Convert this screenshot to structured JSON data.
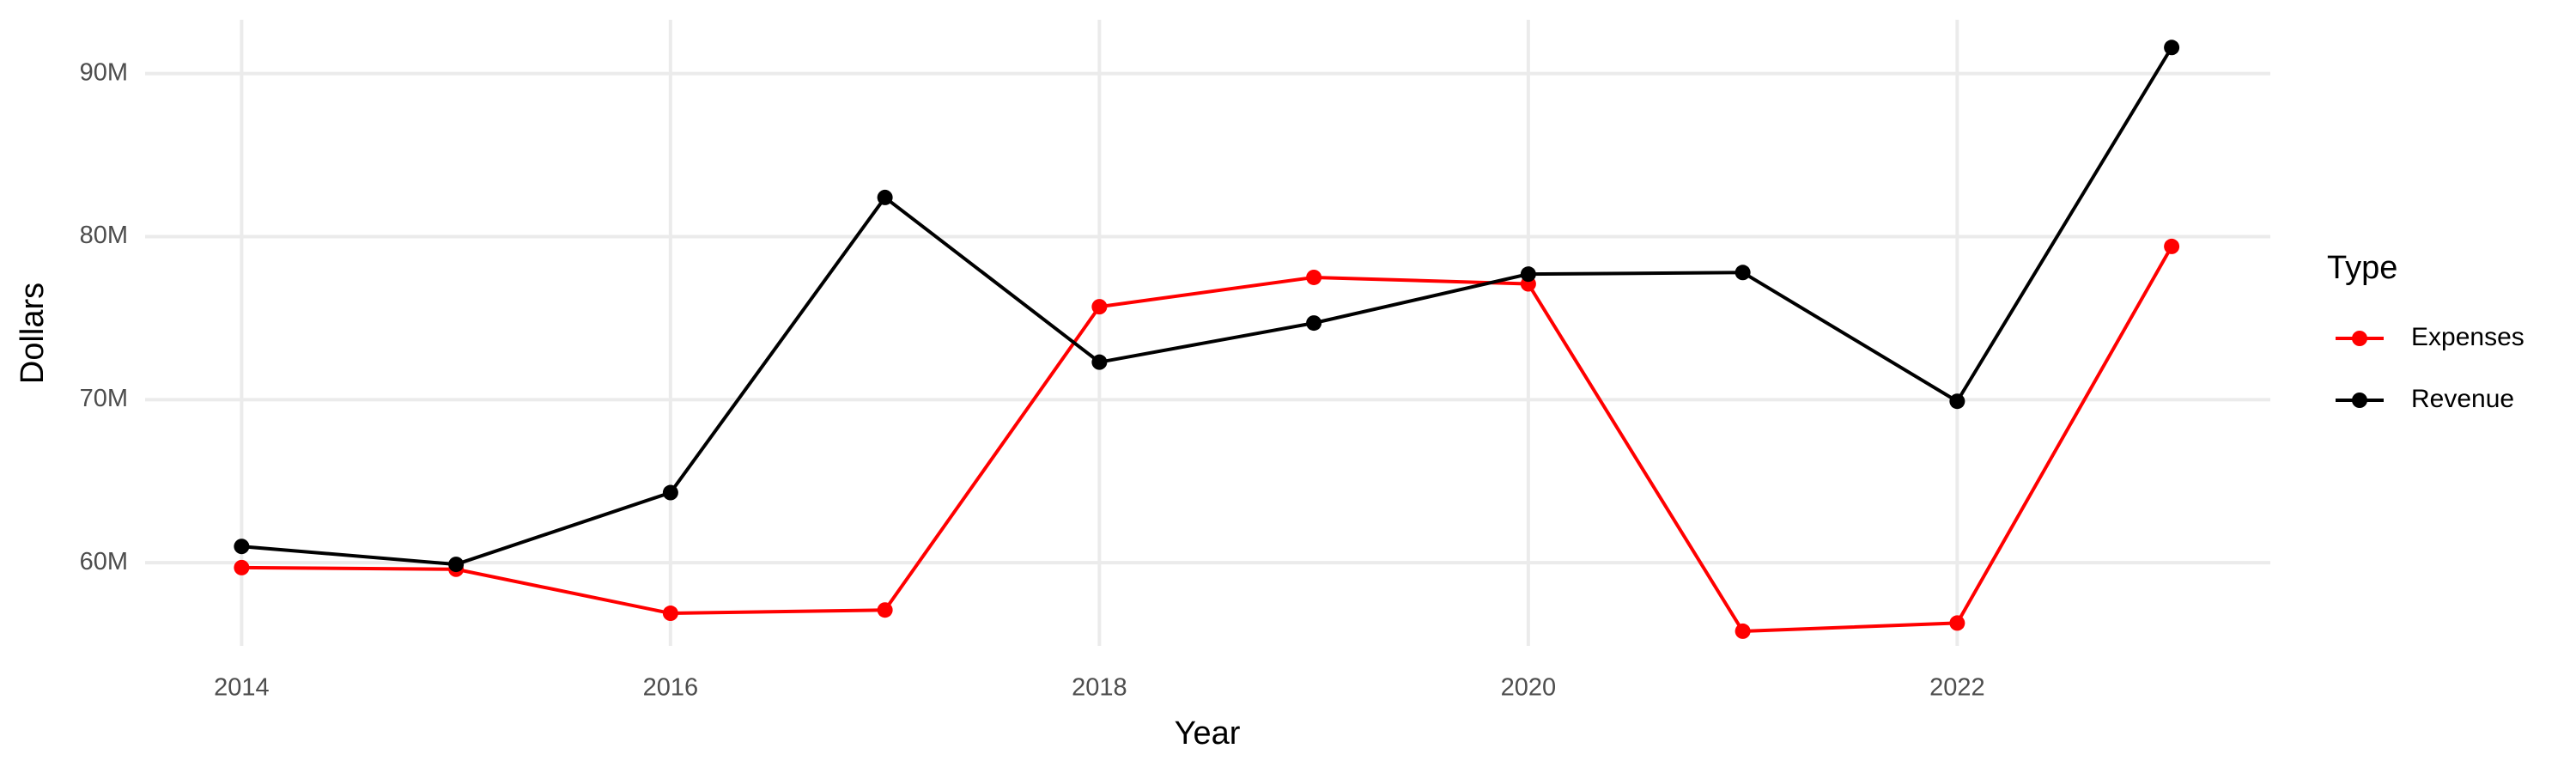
{
  "chart_data": {
    "type": "line",
    "x_label": "Year",
    "y_label": "Dollars",
    "legend_title": "Type",
    "legend_position": "right",
    "grid": true,
    "x": [
      2014,
      2015,
      2016,
      2017,
      2018,
      2019,
      2020,
      2021,
      2022,
      2023
    ],
    "xlim": [
      2013.55,
      2023.46
    ],
    "xticks": [
      2014,
      2016,
      2018,
      2020,
      2022
    ],
    "ylim": [
      54900000,
      93300000
    ],
    "yticks": [
      {
        "value": 60000000,
        "label": "60M"
      },
      {
        "value": 70000000,
        "label": "70M"
      },
      {
        "value": 80000000,
        "label": "80M"
      },
      {
        "value": 90000000,
        "label": "90M"
      }
    ],
    "series": [
      {
        "name": "Expenses",
        "color": "#ff0000",
        "values": [
          59700000,
          59600000,
          56900000,
          57100000,
          75700000,
          77500000,
          77100000,
          55800000,
          56300000,
          79400000
        ]
      },
      {
        "name": "Revenue",
        "color": "#000000",
        "values": [
          61000000,
          59900000,
          64300000,
          82400000,
          72300000,
          74700000,
          77700000,
          77800000,
          69900000,
          91600000
        ]
      }
    ]
  }
}
